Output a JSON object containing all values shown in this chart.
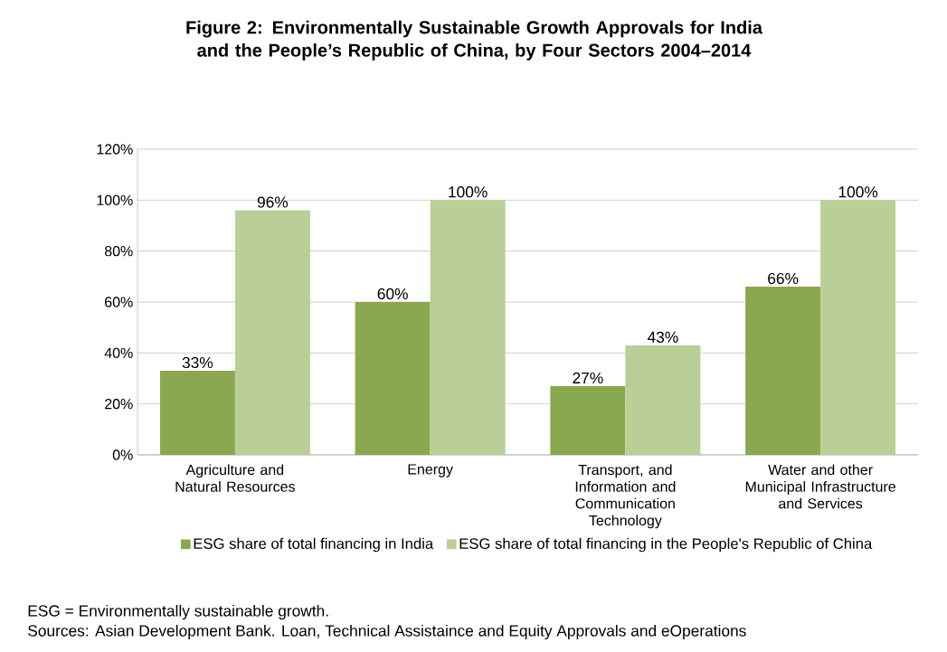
{
  "chart_data": {
    "type": "bar",
    "title": "Figure 2: Environmentally Sustainable Growth Approvals for India and the People’s Republic of China, by Four Sectors 2004–2014",
    "categories": [
      "Agriculture and Natural Resources",
      "Energy",
      "Transport, and Information and Communication Technology",
      "Water and other Municipal Infrastructure and Services"
    ],
    "series": [
      {
        "name": "ESG share of total financing in India",
        "color": "#8aa84f",
        "values": [
          33,
          60,
          27,
          66
        ],
        "value_labels": [
          "33%",
          "60%",
          "27%",
          "66%"
        ]
      },
      {
        "name": "ESG share of total financing in the People's Republic of China",
        "color": "#b9cf97",
        "values": [
          96,
          100,
          43,
          100
        ],
        "value_labels": [
          "96%",
          "100%",
          "43%",
          "100%"
        ]
      }
    ],
    "ylim": [
      0,
      120
    ],
    "yticks": [
      {
        "value": 0,
        "label": "0%"
      },
      {
        "value": 20,
        "label": "20%"
      },
      {
        "value": 40,
        "label": "40%"
      },
      {
        "value": 60,
        "label": "60%"
      },
      {
        "value": 80,
        "label": "80%"
      },
      {
        "value": 100,
        "label": "100%"
      },
      {
        "value": 120,
        "label": "120%"
      }
    ],
    "grid": "y",
    "legend": "bottom",
    "annotations": [
      "ESG = Environmentally sustainable growth.",
      "Sources: Asian Development Bank. Loan, Technical Assistaince and Equity Approvals and eOperations"
    ]
  }
}
